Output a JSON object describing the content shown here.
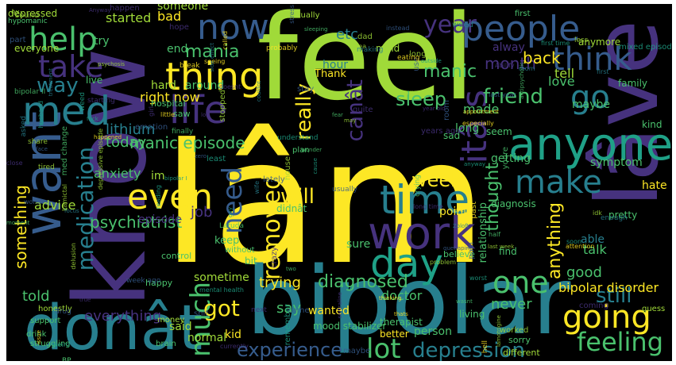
{
  "palette": {
    "yellow": "#fde725",
    "lime": "#a0da39",
    "green": "#4ac16d",
    "teal": "#1fa187",
    "cyan": "#277f8e",
    "blue": "#365c8d",
    "indigo": "#46327e",
    "purple": "#440154"
  },
  "words": {
    "iam": "Iâm",
    "feel": "feel",
    "know": "know",
    "bipolar": "bipolar",
    "ive": "Iâve",
    "dont": "donât",
    "want": "want",
    "med": "med",
    "anyone": "anyone",
    "work": "work",
    "day": "day",
    "time": "time",
    "people": "people",
    "think": "think",
    "now": "now",
    "thing": "thing",
    "life": "life",
    "going": "going",
    "feeling": "feeling",
    "even": "even",
    "make": "make",
    "need": "need",
    "one": "one",
    "go": "go",
    "itas": "itâ s",
    "help": "help",
    "take": "take",
    "way": "way",
    "much": "much",
    "removed": "removed",
    "medication": "medication",
    "lot": "lot",
    "depression": "depression",
    "experience": "experience",
    "diagnosed": "diagnosed",
    "still": "still",
    "got": "got",
    "mania": "mania",
    "cant": "canât",
    "sleep": "sleep",
    "friend": "friend",
    "week": "week",
    "will": "will",
    "really": "really",
    "year": "year",
    "month": "month",
    "manic_episode": "manic episode",
    "lithium": "lithium",
    "today": "today",
    "anxiety": "anxiety",
    "psychiatrist": "psychiatrist",
    "bipolar_disorder": "bipolar disorder",
    "something": "something",
    "told": "told",
    "everything": "everything",
    "thought": "thought",
    "anything": "anything",
    "tell": "tell",
    "love": "love",
    "back": "back",
    "made": "made",
    "started": "started",
    "manic": "manic",
    "bad": "bad",
    "someone": "someone",
    "right_now": "right now",
    "hard": "hard",
    "around": "around",
    "end": "end",
    "say": "say",
    "trying": "trying",
    "sometime": "sometime",
    "good": "good",
    "never": "never",
    "talk": "talk",
    "able": "able",
    "sure": "sure",
    "point": "point",
    "keep": "keep",
    "job": "job",
    "advice": "advice",
    "im": "im",
    "episode": "episode",
    "depressed": "depressed",
    "everyone": "everyone",
    "hypomanic": "hypomanic",
    "doctor": "doctor",
    "symptom": "symptom",
    "hate": "hate",
    "kind": "kind",
    "family": "family",
    "maybe": "maybe",
    "long": "long",
    "getting": "getting",
    "hour": "hour",
    "always": "alway",
    "wanted": "wanted",
    "said": "said",
    "normal": "normal",
    "mood_stabilizer": "mood stabilizer",
    "relationship": "relationship",
    "diagnosis": "diagnosis",
    "therapist": "therapist",
    "find": "find",
    "anymore": "anymore",
    "actually": "actually",
    "first": "first",
    "seem": "seem",
    "really2": "thank",
    "experience2": "Thank",
    "mind": "mind",
    "sad": "sad",
    "etc": "etc",
    "live": "live",
    "try": "try",
    "saw": "saw",
    "bit": "bit",
    "control": "control",
    "believe": "believe",
    "person": "person",
    "better": "better",
    "living": "living",
    "pretty": "pretty",
    "guess": "guess",
    "sorry": "sorry",
    "different": "different",
    "without": "without",
    "happy": "happy",
    "support": "support",
    "honestly": "honestly",
    "drink": "drink",
    "struggling": "struggling",
    "money": "money",
    "kid": "kid",
    "didnt": "didnât",
    "bp": "BP",
    "hospital": "hospital",
    "brain": "brain",
    "plan": "plan",
    "small_words": [
      "idea",
      "drug",
      "half",
      "outside",
      "issue",
      "first",
      "break",
      "may",
      "called",
      "stay",
      "longer",
      "face",
      "least",
      "house",
      "starting",
      "coming",
      "asked",
      "problem",
      "guy",
      "came",
      "lamotrigine",
      "quetiapine",
      "antipsychotic",
      "sertraline",
      "husband",
      "girl",
      "moment",
      "wonder",
      "especially",
      "finally",
      "treatment",
      "understand",
      "probably",
      "soon",
      "lately",
      "maybe",
      "weird",
      "worst",
      "weed",
      "use",
      "fear",
      "share",
      "appointment",
      "mom",
      "dad",
      "wife",
      "anyway",
      "couldnt",
      "wasnt",
      "doesnt",
      "thats",
      "youre",
      "isnt",
      "seeing",
      "room",
      "enough",
      "making",
      "usually",
      "happened",
      "remember",
      "stopped",
      "currently",
      "tired",
      "reading",
      "crying",
      "stress",
      "zero",
      "happen",
      "past",
      "instead",
      "idk",
      "bipolar II",
      "bipolar I",
      "med change",
      "side effect",
      "mental health",
      "years ago",
      "last year",
      "first time",
      "last week",
      "two",
      "close",
      "cause",
      "crazy",
      "worked",
      "attention",
      "Abilify",
      "Latuda",
      "Lamictal",
      "Seroquel",
      "Zoloft",
      "Anyway",
      "ex",
      "sound",
      "weed",
      "world",
      "shit",
      "fuck",
      "hell",
      "year old",
      "little",
      "lol",
      "emotion",
      "quite",
      "pain",
      "mixed episode",
      "depressive episode",
      "psychosis",
      "delusion",
      "focus",
      "thinking",
      "eating",
      "sleeping",
      "week ago",
      "long time",
      "next",
      "part",
      "hope",
      "less",
      "true"
    ]
  }
}
